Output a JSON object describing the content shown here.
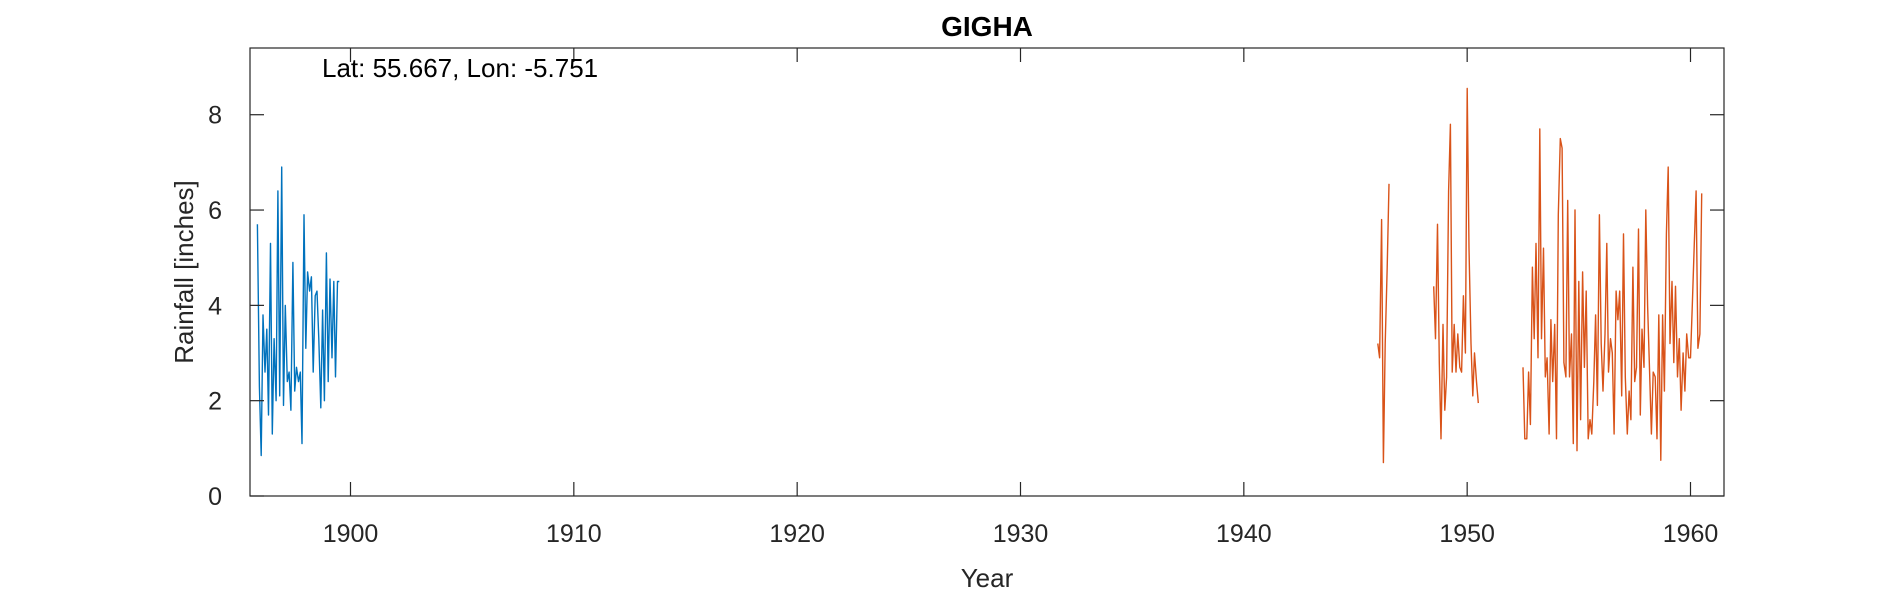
{
  "chart_data": {
    "type": "line",
    "title": "GIGHA",
    "xlabel": "Year",
    "ylabel": "Rainfall [inches]",
    "annotation": "Lat: 55.667, Lon: -5.751",
    "xlim": [
      1895.5,
      1961.5
    ],
    "ylim": [
      0,
      9.4
    ],
    "xticks": [
      1900,
      1910,
      1920,
      1930,
      1940,
      1950,
      1960
    ],
    "yticks": [
      0,
      2,
      4,
      6,
      8
    ],
    "grid": false,
    "series": [
      {
        "color": "#0072BD",
        "segments": [
          {
            "x": [
              1895.83,
              1895.92,
              1896.0,
              1896.08,
              1896.17,
              1896.25,
              1896.33,
              1896.42,
              1896.5,
              1896.58,
              1896.67,
              1896.75,
              1896.83,
              1896.92,
              1897.0,
              1897.08,
              1897.17,
              1897.25,
              1897.33,
              1897.42,
              1897.5,
              1897.58,
              1897.67,
              1897.75,
              1897.83,
              1897.92,
              1898.0,
              1898.08,
              1898.17,
              1898.25,
              1898.33,
              1898.42,
              1898.5,
              1898.58,
              1898.67,
              1898.75,
              1898.83,
              1898.92,
              1899.0,
              1899.08,
              1899.17,
              1899.25,
              1899.33,
              1899.42,
              1899.5
            ],
            "y": [
              5.7,
              2.3,
              0.85,
              3.8,
              2.6,
              3.5,
              1.7,
              5.3,
              1.3,
              3.3,
              2.0,
              6.4,
              2.1,
              6.9,
              1.9,
              4.0,
              2.4,
              2.6,
              1.8,
              4.9,
              2.2,
              2.7,
              2.4,
              2.6,
              1.1,
              5.9,
              3.1,
              4.7,
              4.3,
              4.6,
              2.6,
              4.2,
              4.3,
              3.3,
              1.85,
              3.9,
              2.0,
              5.1,
              2.4,
              4.55,
              2.9,
              4.5,
              2.5,
              4.5,
              4.5
            ]
          }
        ]
      },
      {
        "color": "#D95319",
        "segments": [
          {
            "x": [
              1946.0,
              1946.08,
              1946.17,
              1946.25,
              1946.33,
              1946.42,
              1946.5
            ],
            "y": [
              3.2,
              2.9,
              5.8,
              0.7,
              3.2,
              4.8,
              6.55
            ]
          },
          {
            "x": [
              1948.5,
              1948.58,
              1948.67,
              1948.75,
              1948.83,
              1948.92,
              1949.0,
              1949.08,
              1949.17,
              1949.25,
              1949.33,
              1949.42,
              1949.5,
              1949.58,
              1949.67,
              1949.75,
              1949.83,
              1949.92,
              1950.0,
              1950.08,
              1950.17,
              1950.25,
              1950.33,
              1950.42,
              1950.5
            ],
            "y": [
              4.4,
              3.3,
              5.7,
              2.8,
              1.2,
              3.6,
              1.8,
              2.5,
              6.4,
              7.8,
              2.6,
              3.6,
              2.6,
              3.4,
              2.7,
              2.6,
              4.2,
              3.0,
              8.55,
              5.2,
              3.2,
              2.1,
              3.0,
              2.4,
              1.95
            ]
          },
          {
            "x": [
              1952.5,
              1952.58,
              1952.67,
              1952.75,
              1952.83,
              1952.92,
              1953.0,
              1953.08,
              1953.17,
              1953.25,
              1953.33,
              1953.42,
              1953.5,
              1953.58,
              1953.67,
              1953.75,
              1953.83,
              1953.92,
              1954.0,
              1954.08,
              1954.17,
              1954.25,
              1954.33,
              1954.42,
              1954.5,
              1954.58,
              1954.67,
              1954.75,
              1954.83,
              1954.92,
              1955.0,
              1955.08,
              1955.17,
              1955.25,
              1955.33,
              1955.42,
              1955.5,
              1955.58,
              1955.67,
              1955.75,
              1955.83,
              1955.92,
              1956.0,
              1956.08,
              1956.17,
              1956.25,
              1956.33,
              1956.42,
              1956.5,
              1956.58,
              1956.67,
              1956.75,
              1956.83,
              1956.92,
              1957.0,
              1957.08,
              1957.17,
              1957.25,
              1957.33,
              1957.42,
              1957.5,
              1957.58,
              1957.67,
              1957.75,
              1957.83,
              1957.92,
              1958.0,
              1958.08,
              1958.17,
              1958.25,
              1958.33,
              1958.42,
              1958.5,
              1958.58,
              1958.67,
              1958.75,
              1958.83,
              1958.92,
              1959.0,
              1959.08,
              1959.17,
              1959.25,
              1959.33,
              1959.42,
              1959.5,
              1959.58,
              1959.67,
              1959.75,
              1959.83,
              1959.92,
              1960.0,
              1960.08,
              1960.17,
              1960.25,
              1960.33,
              1960.42,
              1960.5
            ],
            "y": [
              2.7,
              1.2,
              1.2,
              2.6,
              1.5,
              4.8,
              3.3,
              5.3,
              2.9,
              7.7,
              3.3,
              5.2,
              2.5,
              2.9,
              1.3,
              3.7,
              2.4,
              3.6,
              1.2,
              5.9,
              7.5,
              7.3,
              2.8,
              2.5,
              6.2,
              2.5,
              3.4,
              1.1,
              6.0,
              0.95,
              4.5,
              1.6,
              4.7,
              2.7,
              4.3,
              1.2,
              1.6,
              1.3,
              2.4,
              3.8,
              1.9,
              5.9,
              3.2,
              2.2,
              3.4,
              5.3,
              2.6,
              3.3,
              3.0,
              1.3,
              4.3,
              3.7,
              4.3,
              2.1,
              5.5,
              2.5,
              1.3,
              2.2,
              1.6,
              4.8,
              2.4,
              2.7,
              5.6,
              1.7,
              3.5,
              2.7,
              6.0,
              4.0,
              2.6,
              1.3,
              2.6,
              2.5,
              1.2,
              3.8,
              0.75,
              3.8,
              2.2,
              5.5,
              6.9,
              3.2,
              4.5,
              2.8,
              4.4,
              2.5,
              3.3,
              1.8,
              3.0,
              2.2,
              3.4,
              2.9,
              2.9,
              4.0,
              5.3,
              6.4,
              3.1,
              3.4,
              6.35
            ]
          }
        ]
      }
    ]
  }
}
